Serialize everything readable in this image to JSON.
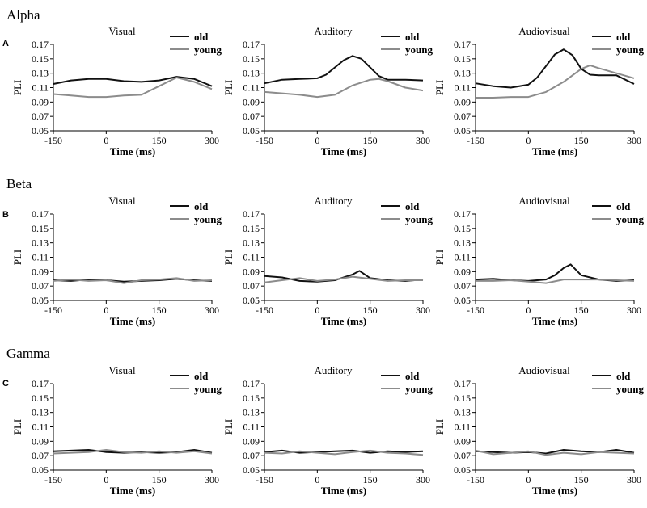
{
  "figure": {
    "bands": [
      {
        "label": "A",
        "title": "Alpha"
      },
      {
        "label": "B",
        "title": "Beta"
      },
      {
        "label": "C",
        "title": "Gamma"
      }
    ],
    "conditions": [
      "Visual",
      "Auditory",
      "Audiovisual"
    ],
    "xlabel": "Time (ms)",
    "ylabel": "PLI",
    "legend": [
      "old",
      "young"
    ],
    "colors": {
      "old": "#111111",
      "young": "#8c8c8c",
      "axis": "#000000",
      "text": "#000000"
    }
  },
  "chart_data": [
    {
      "type": "line",
      "band": "Alpha",
      "title": "Visual",
      "xlabel": "Time (ms)",
      "ylabel": "PLI",
      "xlim": [
        -150,
        300
      ],
      "ylim": [
        0.05,
        0.17
      ],
      "xticks": [
        -150,
        0,
        150,
        300
      ],
      "xtick_labels": [
        "-150",
        "0",
        "150",
        "300"
      ],
      "yticks": [
        0.05,
        0.07,
        0.09,
        0.11,
        0.13,
        0.15,
        0.17
      ],
      "ytick_labels": [
        "0.05",
        "0.07",
        "0.09",
        "0.11",
        "0.13",
        "0.15",
        "0.17"
      ],
      "legend_position": "top-right",
      "series": [
        {
          "name": "old",
          "x": [
            -150,
            -100,
            -50,
            0,
            50,
            100,
            150,
            200,
            250,
            300
          ],
          "values": [
            0.115,
            0.12,
            0.122,
            0.122,
            0.119,
            0.118,
            0.12,
            0.125,
            0.122,
            0.112
          ]
        },
        {
          "name": "young",
          "x": [
            -150,
            -100,
            -50,
            0,
            50,
            100,
            150,
            200,
            250,
            300
          ],
          "values": [
            0.101,
            0.099,
            0.097,
            0.097,
            0.099,
            0.1,
            0.112,
            0.124,
            0.118,
            0.108
          ]
        }
      ]
    },
    {
      "type": "line",
      "band": "Alpha",
      "title": "Auditory",
      "xlabel": "Time (ms)",
      "ylabel": "PLI",
      "xlim": [
        -150,
        300
      ],
      "ylim": [
        0.05,
        0.17
      ],
      "xticks": [
        -150,
        0,
        150,
        300
      ],
      "xtick_labels": [
        "-150",
        "0",
        "150",
        "300"
      ],
      "yticks": [
        0.05,
        0.07,
        0.09,
        0.11,
        0.13,
        0.15,
        0.17
      ],
      "ytick_labels": [
        "0.05",
        "0.07",
        "0.09",
        "0.11",
        "0.13",
        "0.15",
        "0.17"
      ],
      "legend_position": "top-right",
      "series": [
        {
          "name": "old",
          "x": [
            -150,
            -100,
            -50,
            0,
            25,
            50,
            75,
            100,
            125,
            150,
            175,
            200,
            250,
            300
          ],
          "values": [
            0.116,
            0.121,
            0.122,
            0.123,
            0.128,
            0.138,
            0.148,
            0.154,
            0.15,
            0.138,
            0.126,
            0.121,
            0.121,
            0.12
          ]
        },
        {
          "name": "young",
          "x": [
            -150,
            -100,
            -50,
            0,
            50,
            100,
            150,
            175,
            200,
            250,
            300
          ],
          "values": [
            0.104,
            0.102,
            0.1,
            0.097,
            0.1,
            0.113,
            0.121,
            0.122,
            0.119,
            0.11,
            0.106
          ]
        }
      ]
    },
    {
      "type": "line",
      "band": "Alpha",
      "title": "Audiovisual",
      "xlabel": "Time (ms)",
      "ylabel": "PLI",
      "xlim": [
        -150,
        300
      ],
      "ylim": [
        0.05,
        0.17
      ],
      "xticks": [
        -150,
        0,
        150,
        300
      ],
      "xtick_labels": [
        "-150",
        "0",
        "150",
        "300"
      ],
      "yticks": [
        0.05,
        0.07,
        0.09,
        0.11,
        0.13,
        0.15,
        0.17
      ],
      "ytick_labels": [
        "0.05",
        "0.07",
        "0.09",
        "0.11",
        "0.13",
        "0.15",
        "0.17"
      ],
      "legend_position": "top-right",
      "series": [
        {
          "name": "old",
          "x": [
            -150,
            -100,
            -50,
            0,
            25,
            50,
            75,
            100,
            125,
            150,
            175,
            200,
            250,
            300
          ],
          "values": [
            0.116,
            0.112,
            0.11,
            0.114,
            0.124,
            0.14,
            0.156,
            0.163,
            0.155,
            0.136,
            0.128,
            0.127,
            0.127,
            0.115
          ]
        },
        {
          "name": "young",
          "x": [
            -150,
            -100,
            -50,
            0,
            50,
            100,
            150,
            175,
            200,
            250,
            300
          ],
          "values": [
            0.096,
            0.096,
            0.097,
            0.097,
            0.104,
            0.118,
            0.136,
            0.141,
            0.137,
            0.13,
            0.123
          ]
        }
      ]
    },
    {
      "type": "line",
      "band": "Beta",
      "title": "Visual",
      "xlabel": "Time (ms)",
      "ylabel": "PLI",
      "xlim": [
        -150,
        300
      ],
      "ylim": [
        0.05,
        0.17
      ],
      "xticks": [
        -150,
        0,
        150,
        300
      ],
      "xtick_labels": [
        "-150",
        "0",
        "150",
        "300"
      ],
      "yticks": [
        0.05,
        0.07,
        0.09,
        0.11,
        0.13,
        0.15,
        0.17
      ],
      "ytick_labels": [
        "0.05",
        "0.07",
        "0.09",
        "0.11",
        "0.13",
        "0.15",
        "0.17"
      ],
      "legend_position": "top-right",
      "series": [
        {
          "name": "old",
          "x": [
            -150,
            -100,
            -50,
            0,
            50,
            100,
            150,
            200,
            250,
            300
          ],
          "values": [
            0.078,
            0.077,
            0.079,
            0.078,
            0.076,
            0.077,
            0.078,
            0.08,
            0.078,
            0.077
          ]
        },
        {
          "name": "young",
          "x": [
            -150,
            -100,
            -50,
            0,
            50,
            100,
            150,
            200,
            250,
            300
          ],
          "values": [
            0.077,
            0.079,
            0.077,
            0.078,
            0.074,
            0.078,
            0.079,
            0.081,
            0.077,
            0.078
          ]
        }
      ]
    },
    {
      "type": "line",
      "band": "Beta",
      "title": "Auditory",
      "xlabel": "Time (ms)",
      "ylabel": "PLI",
      "xlim": [
        -150,
        300
      ],
      "ylim": [
        0.05,
        0.17
      ],
      "xticks": [
        -150,
        0,
        150,
        300
      ],
      "xtick_labels": [
        "-150",
        "0",
        "150",
        "300"
      ],
      "yticks": [
        0.05,
        0.07,
        0.09,
        0.11,
        0.13,
        0.15,
        0.17
      ],
      "ytick_labels": [
        "0.05",
        "0.07",
        "0.09",
        "0.11",
        "0.13",
        "0.15",
        "0.17"
      ],
      "legend_position": "top-right",
      "series": [
        {
          "name": "old",
          "x": [
            -150,
            -100,
            -50,
            0,
            50,
            100,
            120,
            150,
            200,
            250,
            300
          ],
          "values": [
            0.084,
            0.082,
            0.077,
            0.076,
            0.078,
            0.086,
            0.091,
            0.081,
            0.078,
            0.077,
            0.079
          ]
        },
        {
          "name": "young",
          "x": [
            -150,
            -100,
            -50,
            0,
            50,
            100,
            150,
            200,
            250,
            300
          ],
          "values": [
            0.075,
            0.078,
            0.081,
            0.077,
            0.079,
            0.083,
            0.08,
            0.077,
            0.078,
            0.078
          ]
        }
      ]
    },
    {
      "type": "line",
      "band": "Beta",
      "title": "Audiovisual",
      "xlabel": "Time (ms)",
      "ylabel": "PLI",
      "xlim": [
        -150,
        300
      ],
      "ylim": [
        0.05,
        0.17
      ],
      "xticks": [
        -150,
        0,
        150,
        300
      ],
      "xtick_labels": [
        "-150",
        "0",
        "150",
        "300"
      ],
      "yticks": [
        0.05,
        0.07,
        0.09,
        0.11,
        0.13,
        0.15,
        0.17
      ],
      "ytick_labels": [
        "0.05",
        "0.07",
        "0.09",
        "0.11",
        "0.13",
        "0.15",
        "0.17"
      ],
      "legend_position": "top-right",
      "series": [
        {
          "name": "old",
          "x": [
            -150,
            -100,
            -50,
            0,
            50,
            75,
            100,
            120,
            150,
            200,
            250,
            300
          ],
          "values": [
            0.079,
            0.08,
            0.078,
            0.077,
            0.079,
            0.085,
            0.095,
            0.1,
            0.085,
            0.079,
            0.077,
            0.078
          ]
        },
        {
          "name": "young",
          "x": [
            -150,
            -100,
            -50,
            0,
            50,
            100,
            150,
            200,
            250,
            300
          ],
          "values": [
            0.077,
            0.077,
            0.078,
            0.076,
            0.074,
            0.079,
            0.079,
            0.079,
            0.078,
            0.077
          ]
        }
      ]
    },
    {
      "type": "line",
      "band": "Gamma",
      "title": "Visual",
      "xlabel": "Time (ms)",
      "ylabel": "PLI",
      "xlim": [
        -150,
        300
      ],
      "ylim": [
        0.05,
        0.17
      ],
      "xticks": [
        -150,
        0,
        150,
        300
      ],
      "xtick_labels": [
        "-150",
        "0",
        "150",
        "300"
      ],
      "yticks": [
        0.05,
        0.07,
        0.09,
        0.11,
        0.13,
        0.15,
        0.17
      ],
      "ytick_labels": [
        "0.05",
        "0.07",
        "0.09",
        "0.11",
        "0.13",
        "0.15",
        "0.17"
      ],
      "legend_position": "top-right",
      "series": [
        {
          "name": "old",
          "x": [
            -150,
            -100,
            -50,
            0,
            50,
            100,
            150,
            200,
            250,
            300
          ],
          "values": [
            0.076,
            0.077,
            0.078,
            0.075,
            0.074,
            0.075,
            0.074,
            0.075,
            0.078,
            0.074
          ]
        },
        {
          "name": "young",
          "x": [
            -150,
            -100,
            -50,
            0,
            50,
            100,
            150,
            200,
            250,
            300
          ],
          "values": [
            0.073,
            0.074,
            0.075,
            0.078,
            0.075,
            0.074,
            0.076,
            0.074,
            0.076,
            0.073
          ]
        }
      ]
    },
    {
      "type": "line",
      "band": "Gamma",
      "title": "Auditory",
      "xlabel": "Time (ms)",
      "ylabel": "PLI",
      "xlim": [
        -150,
        300
      ],
      "ylim": [
        0.05,
        0.17
      ],
      "xticks": [
        -150,
        0,
        150,
        300
      ],
      "xtick_labels": [
        "-150",
        "0",
        "150",
        "300"
      ],
      "yticks": [
        0.05,
        0.07,
        0.09,
        0.11,
        0.13,
        0.15,
        0.17
      ],
      "ytick_labels": [
        "0.05",
        "0.07",
        "0.09",
        "0.11",
        "0.13",
        "0.15",
        "0.17"
      ],
      "legend_position": "top-right",
      "series": [
        {
          "name": "old",
          "x": [
            -150,
            -100,
            -50,
            0,
            50,
            100,
            150,
            200,
            250,
            300
          ],
          "values": [
            0.075,
            0.077,
            0.074,
            0.075,
            0.076,
            0.077,
            0.074,
            0.076,
            0.075,
            0.076
          ]
        },
        {
          "name": "young",
          "x": [
            -150,
            -100,
            -50,
            0,
            50,
            100,
            150,
            200,
            250,
            300
          ],
          "values": [
            0.074,
            0.073,
            0.076,
            0.074,
            0.072,
            0.075,
            0.077,
            0.074,
            0.073,
            0.071
          ]
        }
      ]
    },
    {
      "type": "line",
      "band": "Gamma",
      "title": "Audiovisual",
      "xlabel": "Time (ms)",
      "ylabel": "PLI",
      "xlim": [
        -150,
        300
      ],
      "ylim": [
        0.05,
        0.17
      ],
      "xticks": [
        -150,
        0,
        150,
        300
      ],
      "xtick_labels": [
        "-150",
        "0",
        "150",
        "300"
      ],
      "yticks": [
        0.05,
        0.07,
        0.09,
        0.11,
        0.13,
        0.15,
        0.17
      ],
      "ytick_labels": [
        "0.05",
        "0.07",
        "0.09",
        "0.11",
        "0.13",
        "0.15",
        "0.17"
      ],
      "legend_position": "top-right",
      "series": [
        {
          "name": "old",
          "x": [
            -150,
            -100,
            -50,
            0,
            50,
            100,
            150,
            200,
            250,
            300
          ],
          "values": [
            0.076,
            0.075,
            0.074,
            0.075,
            0.073,
            0.078,
            0.076,
            0.075,
            0.078,
            0.074
          ]
        },
        {
          "name": "young",
          "x": [
            -150,
            -100,
            -50,
            0,
            50,
            100,
            150,
            200,
            250,
            300
          ],
          "values": [
            0.077,
            0.072,
            0.074,
            0.076,
            0.071,
            0.074,
            0.072,
            0.075,
            0.074,
            0.073
          ]
        }
      ]
    }
  ]
}
